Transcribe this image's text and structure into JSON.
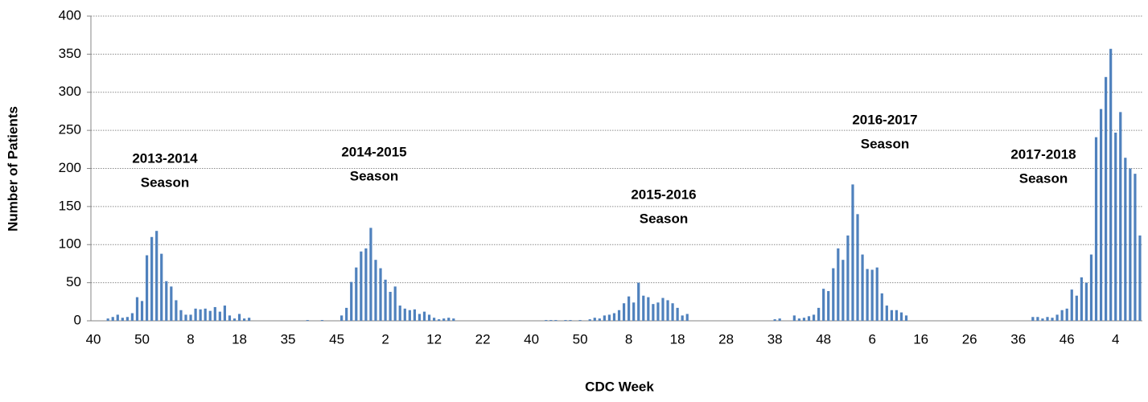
{
  "chart_data": {
    "type": "bar",
    "y_label": "Number of Patients",
    "x_label": "CDC Week",
    "color": "#4f81bd",
    "grid": true,
    "ylim": [
      0,
      400
    ],
    "yticks": [
      0,
      50,
      100,
      150,
      200,
      250,
      300,
      350,
      400
    ],
    "annotations": [
      [
        "2013-2014",
        "Season"
      ],
      [
        "2014-2015",
        "Season"
      ],
      [
        "2015-2016",
        "Season"
      ],
      [
        "2016-2017",
        "Season"
      ],
      [
        "2017-2018",
        "Season"
      ]
    ],
    "categories": [
      "40",
      null,
      null,
      null,
      null,
      null,
      null,
      null,
      null,
      null,
      "50",
      null,
      null,
      null,
      null,
      null,
      null,
      null,
      null,
      null,
      "8",
      null,
      null,
      null,
      null,
      null,
      null,
      null,
      null,
      null,
      "18",
      null,
      null,
      null,
      null,
      null,
      null,
      null,
      null,
      null,
      "35",
      null,
      null,
      null,
      null,
      null,
      null,
      null,
      null,
      null,
      "45",
      null,
      null,
      null,
      null,
      null,
      null,
      null,
      null,
      null,
      "2",
      null,
      null,
      null,
      null,
      null,
      null,
      null,
      null,
      null,
      "12",
      null,
      null,
      null,
      null,
      null,
      null,
      null,
      null,
      null,
      "22",
      null,
      null,
      null,
      null,
      null,
      null,
      null,
      null,
      null,
      "40",
      null,
      null,
      null,
      null,
      null,
      null,
      null,
      null,
      null,
      "50",
      null,
      null,
      null,
      null,
      null,
      null,
      null,
      null,
      null,
      "8",
      null,
      null,
      null,
      null,
      null,
      null,
      null,
      null,
      null,
      "18",
      null,
      null,
      null,
      null,
      null,
      null,
      null,
      null,
      null,
      "28",
      null,
      null,
      null,
      null,
      null,
      null,
      null,
      null,
      null,
      "38",
      null,
      null,
      null,
      null,
      null,
      null,
      null,
      null,
      null,
      "48",
      null,
      null,
      null,
      null,
      null,
      null,
      null,
      null,
      null,
      "6",
      null,
      null,
      null,
      null,
      null,
      null,
      null,
      null,
      null,
      "16",
      null,
      null,
      null,
      null,
      null,
      null,
      null,
      null,
      null,
      "26",
      null,
      null,
      null,
      null,
      null,
      null,
      null,
      null,
      null,
      "36",
      null,
      null,
      null,
      null,
      null,
      null,
      null,
      null,
      null,
      "46",
      null,
      null,
      null,
      null,
      null,
      null,
      null,
      null,
      null,
      "4",
      null,
      null,
      null,
      null,
      null
    ],
    "values": [
      0,
      0,
      0,
      3,
      5,
      8,
      4,
      5,
      10,
      31,
      26,
      86,
      110,
      118,
      88,
      52,
      45,
      27,
      14,
      8,
      8,
      16,
      15,
      16,
      13,
      18,
      12,
      20,
      7,
      3,
      9,
      3,
      4,
      0,
      0,
      0,
      0,
      0,
      0,
      0,
      0,
      0,
      0,
      0,
      1,
      0,
      0,
      1,
      0,
      0,
      0,
      7,
      17,
      51,
      70,
      91,
      95,
      122,
      80,
      69,
      54,
      38,
      45,
      20,
      16,
      14,
      15,
      9,
      12,
      8,
      4,
      2,
      3,
      4,
      3,
      0,
      0,
      0,
      0,
      0,
      0,
      0,
      0,
      0,
      0,
      0,
      0,
      0,
      0,
      0,
      0,
      0,
      0,
      1,
      1,
      1,
      0,
      1,
      1,
      0,
      1,
      0,
      2,
      4,
      3,
      7,
      8,
      10,
      14,
      23,
      32,
      24,
      50,
      33,
      31,
      22,
      24,
      30,
      27,
      23,
      17,
      7,
      9,
      0,
      0,
      0,
      0,
      0,
      0,
      0,
      0,
      0,
      0,
      0,
      0,
      0,
      0,
      0,
      0,
      0,
      2,
      3,
      0,
      0,
      7,
      3,
      4,
      6,
      8,
      17,
      42,
      39,
      69,
      95,
      80,
      112,
      179,
      140,
      87,
      68,
      67,
      70,
      36,
      20,
      14,
      14,
      11,
      7,
      0,
      0,
      0,
      0,
      0,
      0,
      0,
      0,
      0,
      0,
      0,
      0,
      0,
      0,
      0,
      0,
      0,
      0,
      0,
      0,
      0,
      0,
      0,
      0,
      0,
      5,
      5,
      3,
      5,
      4,
      8,
      14,
      16,
      41,
      33,
      57,
      50,
      87,
      241,
      278,
      320,
      357,
      247,
      274,
      214,
      200,
      193,
      112
    ]
  }
}
